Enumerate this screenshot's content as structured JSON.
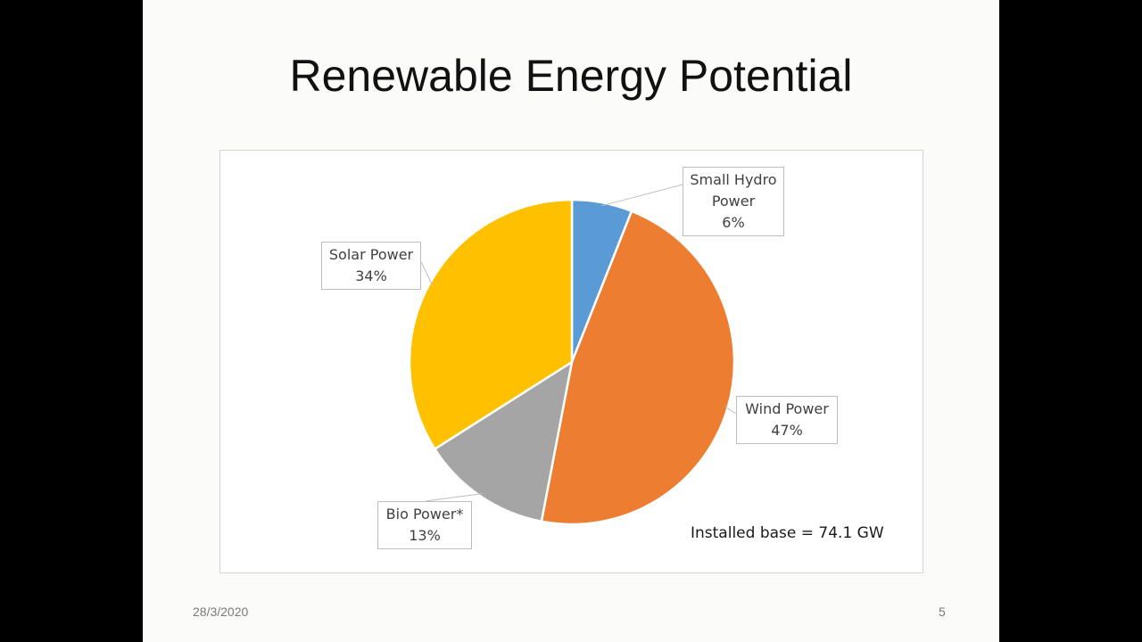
{
  "slide": {
    "title": "Renewable Energy Potential",
    "date": "28/3/2020",
    "page_number": "5"
  },
  "chart_data": {
    "type": "pie",
    "title": "",
    "note": "Installed base = 74.1 GW",
    "slices": [
      {
        "label": "Small Hydro Power",
        "label_lines": [
          "Small Hydro",
          "Power"
        ],
        "value_label": "6%",
        "value": 6,
        "color": "#5b9bd5"
      },
      {
        "label": "Wind Power",
        "label_lines": [
          "Wind Power"
        ],
        "value_label": "47%",
        "value": 47,
        "color": "#ed7d31"
      },
      {
        "label": "Bio Power*",
        "label_lines": [
          "Bio Power*"
        ],
        "value_label": "13%",
        "value": 13,
        "color": "#a5a5a5"
      },
      {
        "label": "Solar Power",
        "label_lines": [
          "Solar Power"
        ],
        "value_label": "34%",
        "value": 34,
        "color": "#ffc000"
      }
    ]
  }
}
